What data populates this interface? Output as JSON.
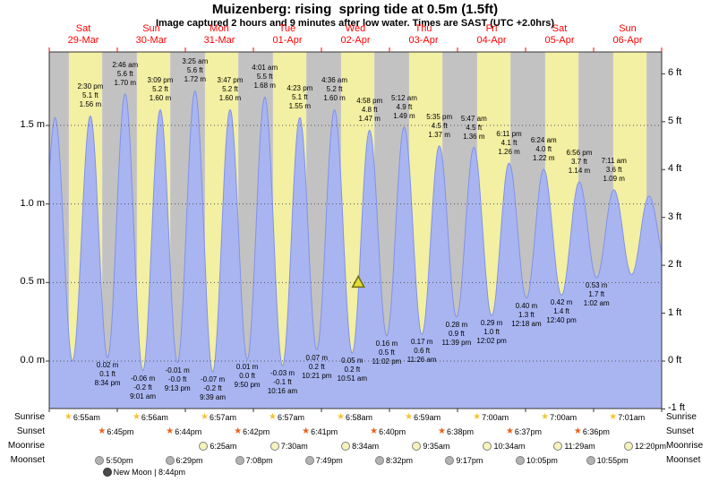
{
  "title": "Muizenberg: rising  spring tide at 0.5m (1.5ft)",
  "subtitle": "Image captured 2 hours and 9 minutes after low water. Times are SAST (UTC +2.0hrs)",
  "colors": {
    "day_band": "#f3efa3",
    "night_band": "#c2c2c2",
    "tide_fill": "#a9b5f1",
    "tide_line": "#8192e6",
    "grid": "#555555",
    "frame": "#333333",
    "day_label": "#ff0000",
    "marker_fill": "#e3dc35",
    "marker_stroke": "#6e6e12",
    "sunrise_star": "#f2c530",
    "sunset_star": "#e8641c",
    "moonrise_fill": "#f6f2bb",
    "moonset_fill": "#b3b3b3",
    "new_moon_fill": "#4a4a4a"
  },
  "days": [
    {
      "name": "Sat",
      "date": "29-Mar"
    },
    {
      "name": "Sun",
      "date": "30-Mar"
    },
    {
      "name": "Mon",
      "date": "31-Mar"
    },
    {
      "name": "Tue",
      "date": "01-Apr"
    },
    {
      "name": "Wed",
      "date": "02-Apr"
    },
    {
      "name": "Thu",
      "date": "03-Apr"
    },
    {
      "name": "Fri",
      "date": "04-Apr"
    },
    {
      "name": "Sat",
      "date": "05-Apr"
    },
    {
      "name": "Sun",
      "date": "06-Apr"
    }
  ],
  "axes": {
    "left": [
      {
        "label": "1.5 m",
        "v": 1.5
      },
      {
        "label": "1.0 m",
        "v": 1.0
      },
      {
        "label": "0.5 m",
        "v": 0.5
      },
      {
        "label": "0.0 m",
        "v": 0.0
      }
    ],
    "right": [
      {
        "label": "6 ft",
        "ft": 6
      },
      {
        "label": "5 ft",
        "ft": 5
      },
      {
        "label": "4 ft",
        "ft": 4
      },
      {
        "label": "3 ft",
        "ft": 3
      },
      {
        "label": "2 ft",
        "ft": 2
      },
      {
        "label": "1 ft",
        "ft": 1
      },
      {
        "label": "0 ft",
        "ft": 0
      },
      {
        "label": "-1 ft",
        "ft": -1
      }
    ]
  },
  "chart_data": {
    "type": "area",
    "title": "Muizenberg tide height, Sat 29-Mar to Sun 06-Apr",
    "ylim_m": [
      -0.3,
      1.97
    ],
    "grid_m": [
      0.0,
      0.5,
      1.0,
      1.5
    ],
    "tides": [
      {
        "type": "high",
        "day": 0,
        "hour": 14.5,
        "time": "2:30 pm",
        "ft": "5.1 ft",
        "m": "1.56 m",
        "v": 1.56
      },
      {
        "type": "low",
        "day": 0,
        "hour": 20.57,
        "time": "8:34 pm",
        "ft": "0.1 ft",
        "m": "0.02 m",
        "v": 0.02
      },
      {
        "type": "high",
        "day": 1,
        "hour": 2.77,
        "time": "2:46 am",
        "ft": "5.6 ft",
        "m": "1.70 m",
        "v": 1.7
      },
      {
        "type": "low",
        "day": 1,
        "hour": 9.02,
        "time": "9:01 am",
        "ft": "-0.2 ft",
        "m": "-0.06 m",
        "v": -0.06
      },
      {
        "type": "high",
        "day": 1,
        "hour": 15.15,
        "time": "3:09 pm",
        "ft": "5.2 ft",
        "m": "1.60 m",
        "v": 1.6
      },
      {
        "type": "low",
        "day": 1,
        "hour": 21.22,
        "time": "9:13 pm",
        "ft": "-0.0 ft",
        "m": "-0.01 m",
        "v": -0.01
      },
      {
        "type": "high",
        "day": 2,
        "hour": 3.42,
        "time": "3:25 am",
        "ft": "5.6 ft",
        "m": "1.72 m",
        "v": 1.72
      },
      {
        "type": "low",
        "day": 2,
        "hour": 9.65,
        "time": "9:39 am",
        "ft": "-0.2 ft",
        "m": "-0.07 m",
        "v": -0.07
      },
      {
        "type": "high",
        "day": 2,
        "hour": 15.78,
        "time": "3:47 pm",
        "ft": "5.2 ft",
        "m": "1.60 m",
        "v": 1.6
      },
      {
        "type": "low",
        "day": 2,
        "hour": 21.83,
        "time": "9:50 pm",
        "ft": "0.0 ft",
        "m": "0.01 m",
        "v": 0.01
      },
      {
        "type": "high",
        "day": 3,
        "hour": 4.02,
        "time": "4:01 am",
        "ft": "5.5 ft",
        "m": "1.68 m",
        "v": 1.68
      },
      {
        "type": "low",
        "day": 3,
        "hour": 10.27,
        "time": "10:16 am",
        "ft": "-0.1 ft",
        "m": "-0.03 m",
        "v": -0.03
      },
      {
        "type": "high",
        "day": 3,
        "hour": 16.38,
        "time": "4:23 pm",
        "ft": "5.1 ft",
        "m": "1.55 m",
        "v": 1.55
      },
      {
        "type": "low",
        "day": 3,
        "hour": 22.35,
        "time": "10:21 pm",
        "ft": "0.2 ft",
        "m": "0.07 m",
        "v": 0.07
      },
      {
        "type": "high",
        "day": 4,
        "hour": 4.6,
        "time": "4:36 am",
        "ft": "5.2 ft",
        "m": "1.60 m",
        "v": 1.6
      },
      {
        "type": "low",
        "day": 4,
        "hour": 10.85,
        "time": "10:51 am",
        "ft": "0.2 ft",
        "m": "0.05 m",
        "v": 0.05
      },
      {
        "type": "high",
        "day": 4,
        "hour": 16.97,
        "time": "4:58 pm",
        "ft": "4.8 ft",
        "m": "1.47 m",
        "v": 1.47
      },
      {
        "type": "low",
        "day": 4,
        "hour": 23.03,
        "time": "11:02 pm",
        "ft": "0.5 ft",
        "m": "0.16 m",
        "v": 0.16
      },
      {
        "type": "high",
        "day": 5,
        "hour": 5.2,
        "time": "5:12 am",
        "ft": "4.9 ft",
        "m": "1.49 m",
        "v": 1.49
      },
      {
        "type": "low",
        "day": 5,
        "hour": 11.43,
        "time": "11:26 am",
        "ft": "0.6 ft",
        "m": "0.17 m",
        "v": 0.17
      },
      {
        "type": "high",
        "day": 5,
        "hour": 17.58,
        "time": "5:35 pm",
        "ft": "4.5 ft",
        "m": "1.37 m",
        "v": 1.37
      },
      {
        "type": "low",
        "day": 5,
        "hour": 23.65,
        "time": "11:39 pm",
        "ft": "0.9 ft",
        "m": "0.28 m",
        "v": 0.28
      },
      {
        "type": "high",
        "day": 6,
        "hour": 5.78,
        "time": "5:47 am",
        "ft": "4.5 ft",
        "m": "1.36 m",
        "v": 1.36
      },
      {
        "type": "low",
        "day": 6,
        "hour": 12.03,
        "time": "12:02 pm",
        "ft": "1.0 ft",
        "m": "0.29 m",
        "v": 0.29
      },
      {
        "type": "high",
        "day": 6,
        "hour": 18.18,
        "time": "6:11 pm",
        "ft": "4.1 ft",
        "m": "1.26 m",
        "v": 1.26
      },
      {
        "type": "low",
        "day": 7,
        "hour": 0.3,
        "time": "12:18 am",
        "ft": "1.3 ft",
        "m": "0.40 m",
        "v": 0.4
      },
      {
        "type": "high",
        "day": 7,
        "hour": 6.4,
        "time": "6:24 am",
        "ft": "4.0 ft",
        "m": "1.22 m",
        "v": 1.22
      },
      {
        "type": "low",
        "day": 7,
        "hour": 12.67,
        "time": "12:40 pm",
        "ft": "1.4 ft",
        "m": "0.42 m",
        "v": 0.42
      },
      {
        "type": "high",
        "day": 7,
        "hour": 18.93,
        "time": "6:56 pm",
        "ft": "3.7 ft",
        "m": "1.14 m",
        "v": 1.14
      },
      {
        "type": "low",
        "day": 8,
        "hour": 1.03,
        "time": "1:02 am",
        "ft": "1.7 ft",
        "m": "0.53 m",
        "v": 0.53
      },
      {
        "type": "high",
        "day": 8,
        "hour": 7.18,
        "time": "7:11 am",
        "ft": "3.6 ft",
        "m": "1.09 m",
        "v": 1.09
      }
    ],
    "unlabeled_curve_points": [
      {
        "day": 0,
        "hour": -4.3,
        "v": 0.03
      },
      {
        "day": 0,
        "hour": 2.08,
        "v": 1.55
      },
      {
        "day": 0,
        "hour": 8.2,
        "v": 0.0
      },
      {
        "day": 8,
        "hour": 13.4,
        "v": 0.55
      },
      {
        "day": 8,
        "hour": 19.55,
        "v": 1.05
      },
      {
        "day": 9,
        "hour": 1.8,
        "v": 0.6
      }
    ],
    "current_marker": {
      "day": 4,
      "hour": 13.0,
      "height_m": 0.5
    }
  },
  "sun_moon": {
    "rows": [
      {
        "id": "sunrise",
        "label": "Sunrise",
        "entries": [
          {
            "day": 0,
            "hour": 6.92,
            "time": "6:55am"
          },
          {
            "day": 1,
            "hour": 6.93,
            "time": "6:56am"
          },
          {
            "day": 2,
            "hour": 6.95,
            "time": "6:57am"
          },
          {
            "day": 3,
            "hour": 6.95,
            "time": "6:57am"
          },
          {
            "day": 4,
            "hour": 6.97,
            "time": "6:58am"
          },
          {
            "day": 5,
            "hour": 6.98,
            "time": "6:59am"
          },
          {
            "day": 6,
            "hour": 7.0,
            "time": "7:00am"
          },
          {
            "day": 7,
            "hour": 7.0,
            "time": "7:00am"
          },
          {
            "day": 8,
            "hour": 7.02,
            "time": "7:01am"
          }
        ]
      },
      {
        "id": "sunset",
        "label": "Sunset",
        "entries": [
          {
            "day": 0,
            "hour": 18.75,
            "time": "6:45pm"
          },
          {
            "day": 1,
            "hour": 18.73,
            "time": "6:44pm"
          },
          {
            "day": 2,
            "hour": 18.7,
            "time": "6:42pm"
          },
          {
            "day": 3,
            "hour": 18.68,
            "time": "6:41pm"
          },
          {
            "day": 4,
            "hour": 18.67,
            "time": "6:40pm"
          },
          {
            "day": 5,
            "hour": 18.63,
            "time": "6:38pm"
          },
          {
            "day": 6,
            "hour": 18.62,
            "time": "6:37pm"
          },
          {
            "day": 7,
            "hour": 18.6,
            "time": "6:36pm"
          }
        ]
      },
      {
        "id": "moonrise",
        "label": "Moonrise",
        "entries": [
          {
            "day": 2,
            "hour": 6.42,
            "time": "6:25am"
          },
          {
            "day": 3,
            "hour": 7.5,
            "time": "7:30am"
          },
          {
            "day": 4,
            "hour": 8.57,
            "time": "8:34am"
          },
          {
            "day": 5,
            "hour": 9.58,
            "time": "9:35am"
          },
          {
            "day": 6,
            "hour": 10.57,
            "time": "10:34am"
          },
          {
            "day": 7,
            "hour": 11.48,
            "time": "11:29am"
          },
          {
            "day": 8,
            "hour": 12.33,
            "time": "12:20pm"
          }
        ]
      },
      {
        "id": "moonset",
        "label": "Moonset",
        "entries": [
          {
            "day": 0,
            "hour": 17.83,
            "time": "5:50pm"
          },
          {
            "day": 1,
            "hour": 18.48,
            "time": "6:29pm"
          },
          {
            "day": 2,
            "hour": 19.13,
            "time": "7:08pm"
          },
          {
            "day": 3,
            "hour": 19.82,
            "time": "7:49pm"
          },
          {
            "day": 4,
            "hour": 20.53,
            "time": "8:32pm"
          },
          {
            "day": 5,
            "hour": 21.28,
            "time": "9:17pm"
          },
          {
            "day": 6,
            "hour": 22.08,
            "time": "10:05pm"
          },
          {
            "day": 7,
            "hour": 22.92,
            "time": "10:55pm"
          }
        ]
      }
    ],
    "new_moon": {
      "label": "New Moon | 8:44pm",
      "day": 0,
      "hour": 20.73
    }
  }
}
